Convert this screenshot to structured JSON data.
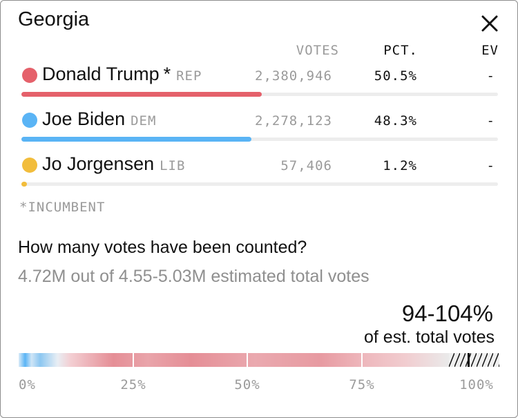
{
  "header": {
    "title": "Georgia",
    "close_icon": "close-icon"
  },
  "columns": {
    "votes": "VOTES",
    "pct": "PCT.",
    "ev": "EV"
  },
  "candidates": [
    {
      "name": "Donald Trump",
      "star": "*",
      "party": "REP",
      "votes": "2,380,946",
      "pct": "50.5%",
      "ev": "-",
      "color": "#e5616b",
      "share": 0.505
    },
    {
      "name": "Joe Biden",
      "star": "",
      "party": "DEM",
      "votes": "2,278,123",
      "pct": "48.3%",
      "ev": "-",
      "color": "#5ab4f5",
      "share": 0.483
    },
    {
      "name": "Jo Jorgensen",
      "star": "",
      "party": "LIB",
      "votes": "57,406",
      "pct": "1.2%",
      "ev": "-",
      "color": "#f2bd3c",
      "share": 0.012
    }
  ],
  "incumbent_note": "*INCUMBENT",
  "count": {
    "question": "How many votes have been counted?",
    "detail": "4.72M out of 4.55-5.03M estimated total votes",
    "range_pct": "94-104%",
    "range_sub": "of est. total votes",
    "estimate_low": 0.94,
    "estimate_high": 1.04,
    "counted_share": 0.98,
    "axis": [
      "0%",
      "25%",
      "50%",
      "75%",
      "100%"
    ]
  },
  "colors": {
    "rep": "#e5616b",
    "dem": "#5ab4f5",
    "lib": "#f2bd3c",
    "muted": "#9a9a9a"
  }
}
